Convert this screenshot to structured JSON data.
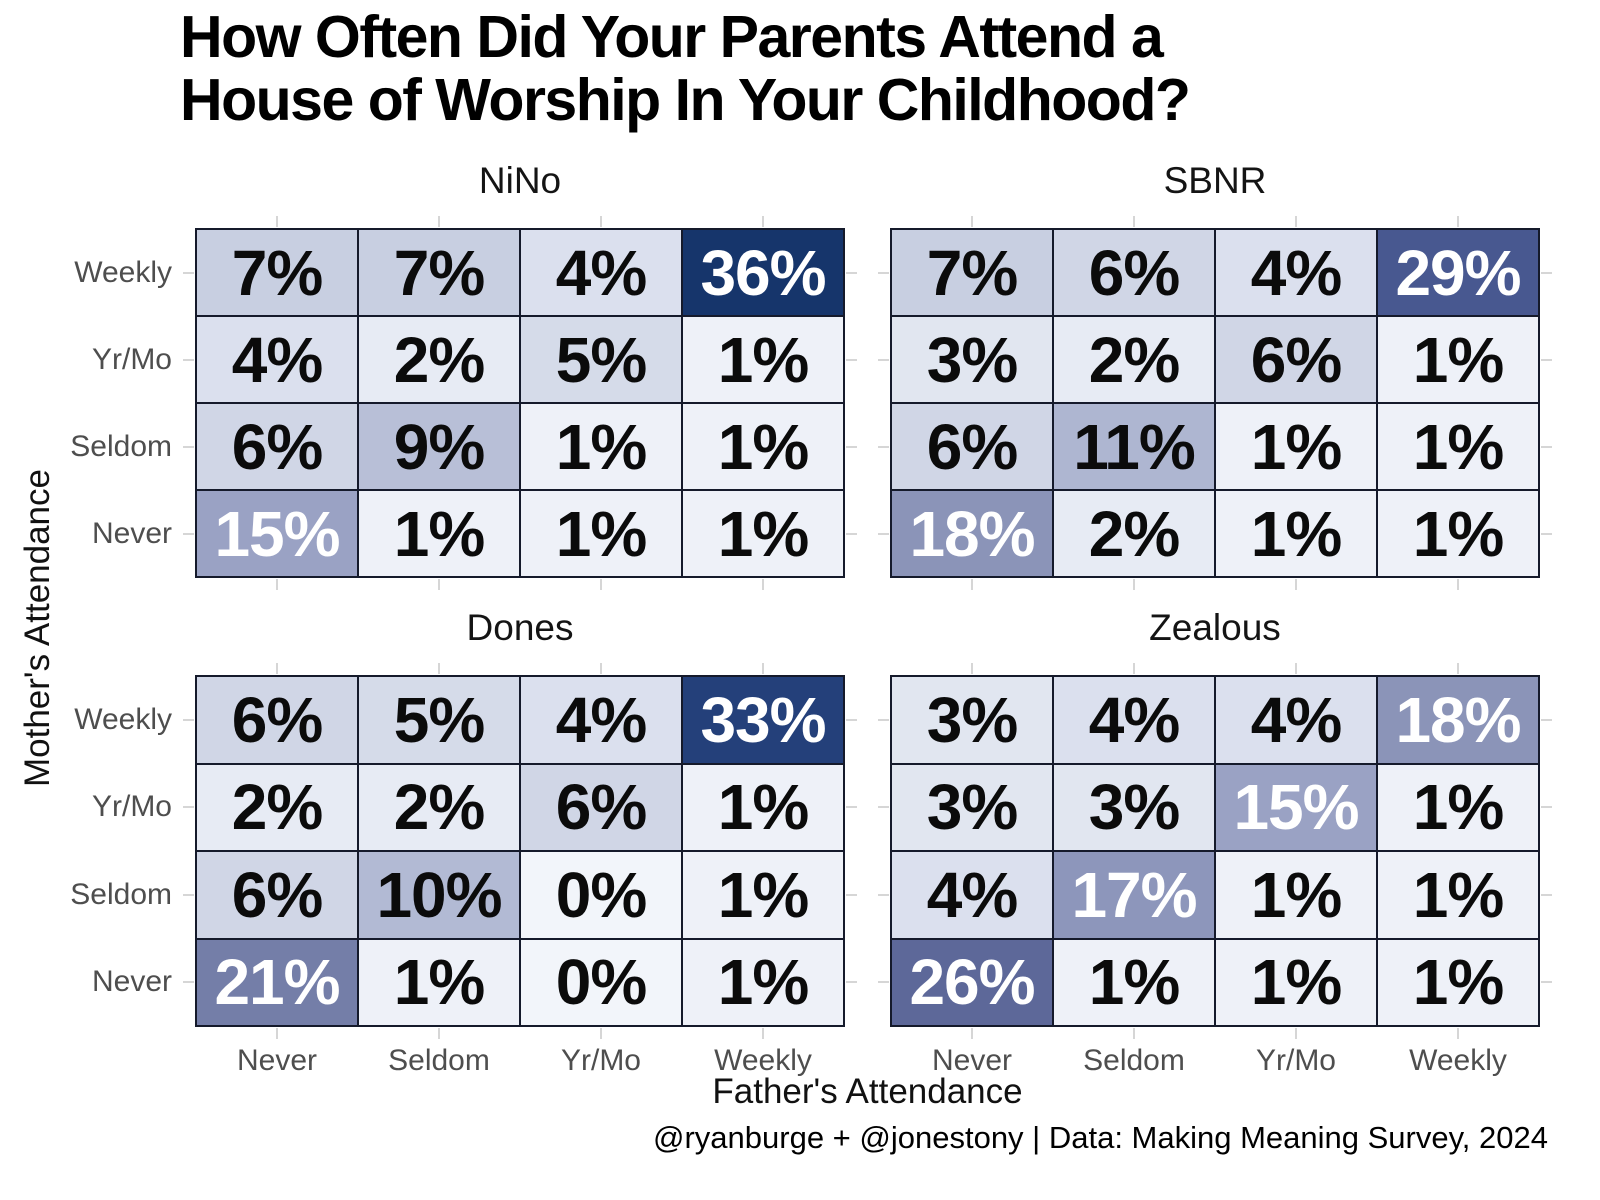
{
  "page": {
    "title_line1": "How Often Did Your Parents Attend a",
    "title_line2": "House of Worship In Your Childhood?",
    "x_axis_title": "Father's Attendance",
    "y_axis_title": "Mother's Attendance",
    "credit": "@ryanburge + @jonestony | Data: Making Meaning Survey, 2024"
  },
  "chart_data": {
    "type": "heatmap",
    "title": "How Often Did Your Parents Attend a House of Worship In Your Childhood?",
    "xlabel": "Father's Attendance",
    "ylabel": "Mother's Attendance",
    "columns": [
      "Never",
      "Seldom",
      "Yr/Mo",
      "Weekly"
    ],
    "rows": [
      "Weekly",
      "Yr/Mo",
      "Seldom",
      "Never"
    ],
    "value_suffix": "%",
    "legend": "none",
    "facets": [
      {
        "name": "NiNo",
        "values": [
          [
            7,
            7,
            4,
            36
          ],
          [
            4,
            2,
            5,
            1
          ],
          [
            6,
            9,
            1,
            1
          ],
          [
            15,
            1,
            1,
            1
          ]
        ]
      },
      {
        "name": "SBNR",
        "values": [
          [
            7,
            6,
            4,
            29
          ],
          [
            3,
            2,
            6,
            1
          ],
          [
            6,
            11,
            1,
            1
          ],
          [
            18,
            2,
            1,
            1
          ]
        ]
      },
      {
        "name": "Dones",
        "values": [
          [
            6,
            5,
            4,
            33
          ],
          [
            2,
            2,
            6,
            1
          ],
          [
            6,
            10,
            0,
            1
          ],
          [
            21,
            1,
            0,
            1
          ]
        ]
      },
      {
        "name": "Zealous",
        "values": [
          [
            3,
            4,
            4,
            18
          ],
          [
            3,
            3,
            15,
            1
          ],
          [
            4,
            17,
            1,
            1
          ],
          [
            26,
            1,
            1,
            1
          ]
        ]
      }
    ],
    "color_scale": {
      "white_text_min": 15,
      "dark_text_color": "#0b0b0b",
      "light_text_color": "#ffffff",
      "stops": [
        {
          "v": 0,
          "c": "#f2f5fa"
        },
        {
          "v": 1,
          "c": "#eef1f8"
        },
        {
          "v": 2,
          "c": "#e7ebf4"
        },
        {
          "v": 3,
          "c": "#e1e6f0"
        },
        {
          "v": 4,
          "c": "#dbe0ee"
        },
        {
          "v": 5,
          "c": "#d5dbe9"
        },
        {
          "v": 6,
          "c": "#d0d6e6"
        },
        {
          "v": 7,
          "c": "#c8cfe1"
        },
        {
          "v": 9,
          "c": "#b8bfd7"
        },
        {
          "v": 10,
          "c": "#b2bad4"
        },
        {
          "v": 11,
          "c": "#aeb6d1"
        },
        {
          "v": 15,
          "c": "#9aa2c4"
        },
        {
          "v": 17,
          "c": "#8d96bb"
        },
        {
          "v": 18,
          "c": "#8b94b8"
        },
        {
          "v": 21,
          "c": "#747ea8"
        },
        {
          "v": 26,
          "c": "#5d6899"
        },
        {
          "v": 29,
          "c": "#485890"
        },
        {
          "v": 33,
          "c": "#24407a"
        },
        {
          "v": 36,
          "c": "#16356b"
        }
      ]
    },
    "grid_tick_color": "#d6d6d6",
    "cell_border_color": "#151a2b",
    "axis_label_color": "#4e4e4e"
  }
}
